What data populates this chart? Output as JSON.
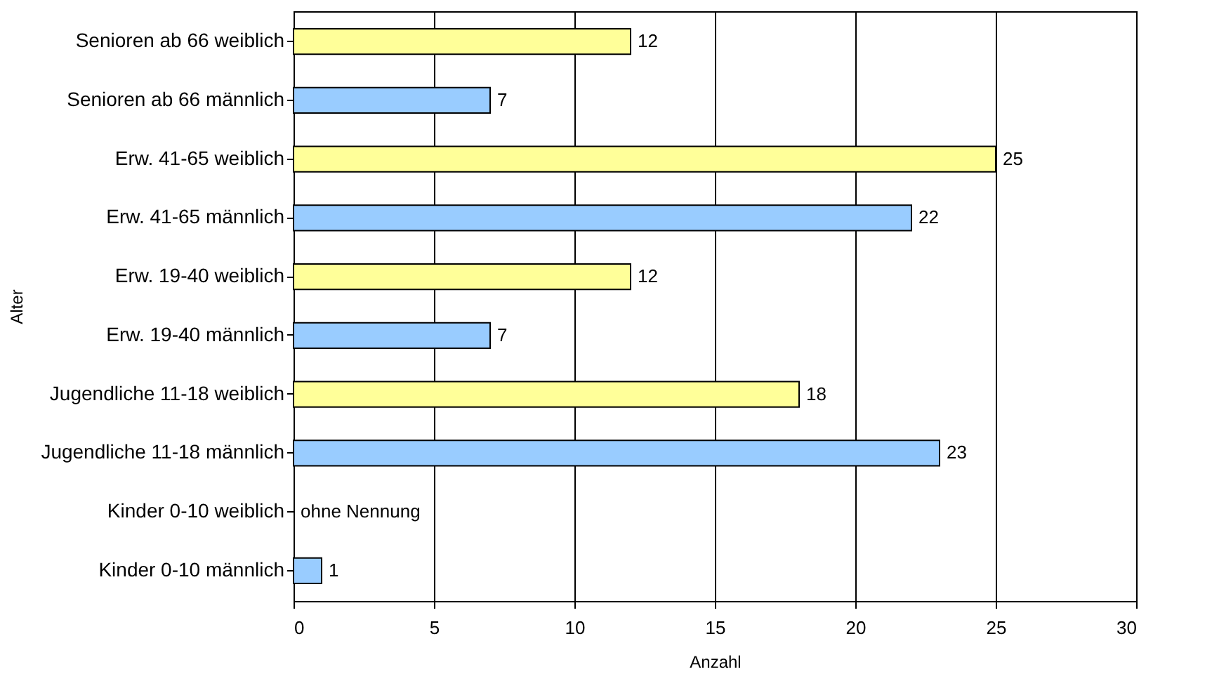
{
  "chart_data": {
    "type": "bar",
    "orientation": "horizontal",
    "xlabel": "Anzahl",
    "ylabel": "Alter",
    "categories": [
      "Senioren ab 66 weiblich",
      "Senioren ab 66 männlich",
      "Erw. 41-65 weiblich",
      "Erw. 41-65 männlich",
      "Erw. 19-40 weiblich",
      "Erw. 19-40 männlich",
      "Jugendliche 11-18 weiblich",
      "Jugendliche 11-18 männlich",
      "Kinder  0-10 weiblich",
      "Kinder  0-10 männlich"
    ],
    "values": [
      12,
      7,
      25,
      22,
      12,
      7,
      18,
      23,
      null,
      1
    ],
    "colors": [
      "#ffff99",
      "#99ccff",
      "#ffff99",
      "#99ccff",
      "#ffff99",
      "#99ccff",
      "#ffff99",
      "#99ccff",
      "#ffff99",
      "#99ccff"
    ],
    "value_labels": [
      "12",
      "7",
      "25",
      "22",
      "12",
      "7",
      "18",
      "23",
      "ohne Nennung",
      "1"
    ],
    "xlim": [
      0,
      30
    ],
    "xticks": [
      0,
      5,
      10,
      15,
      20,
      25,
      30
    ],
    "grid": "x"
  }
}
